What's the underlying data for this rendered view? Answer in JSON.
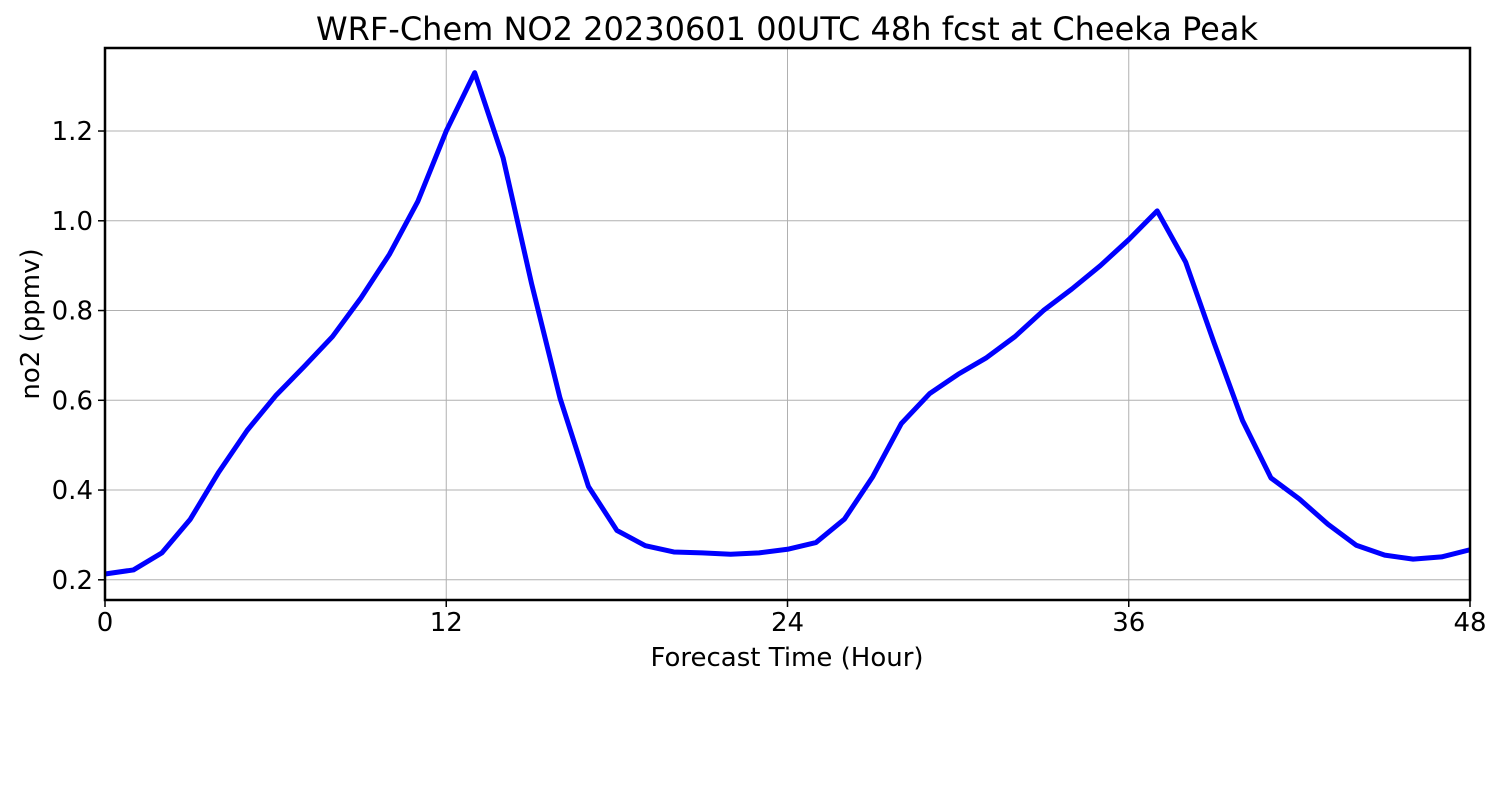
{
  "chart_data": {
    "type": "line",
    "title": "WRF-Chem NO2  20230601 00UTC 48h fcst at Cheeka Peak",
    "xlabel": "Forecast Time (Hour)",
    "ylabel": "no2  (ppmv)",
    "xlim": [
      0,
      48
    ],
    "ylim": [
      0.155,
      1.385
    ],
    "xticks": [
      0,
      12,
      24,
      36,
      48
    ],
    "xtick_labels": [
      "0",
      "12",
      "24",
      "36",
      "48"
    ],
    "yticks": [
      0.2,
      0.4,
      0.6,
      0.8,
      1.0,
      1.2
    ],
    "ytick_labels": [
      "0.2",
      "0.4",
      "0.6",
      "0.8",
      "1.0",
      "1.2"
    ],
    "grid": true,
    "series": [
      {
        "color": "#0000ff",
        "x": [
          0,
          1,
          2,
          3,
          4,
          5,
          6,
          7,
          8,
          9,
          10,
          11,
          12,
          13,
          14,
          15,
          16,
          17,
          18,
          19,
          20,
          21,
          22,
          23,
          24,
          25,
          26,
          27,
          28,
          29,
          30,
          31,
          32,
          33,
          34,
          35,
          36,
          37,
          38,
          39,
          40,
          41,
          42,
          43,
          44,
          45,
          46,
          47,
          48
        ],
        "values": [
          0.213,
          0.222,
          0.26,
          0.335,
          0.44,
          0.533,
          0.61,
          0.675,
          0.742,
          0.828,
          0.925,
          1.043,
          1.2,
          1.33,
          1.14,
          0.86,
          0.605,
          0.408,
          0.31,
          0.276,
          0.262,
          0.26,
          0.257,
          0.26,
          0.268,
          0.283,
          0.335,
          0.43,
          0.548,
          0.615,
          0.658,
          0.695,
          0.742,
          0.8,
          0.848,
          0.9,
          0.958,
          1.022,
          0.908,
          0.728,
          0.555,
          0.427,
          0.38,
          0.324,
          0.277,
          0.255,
          0.246,
          0.251,
          0.267
        ]
      }
    ]
  }
}
